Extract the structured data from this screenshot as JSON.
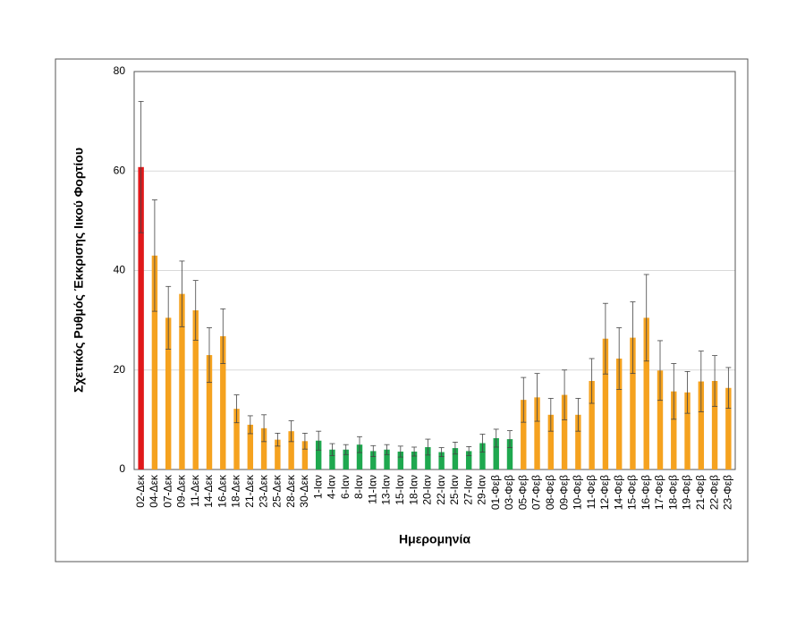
{
  "chart_data": {
    "type": "bar",
    "y_label": "Σχετικός Ρυθμός Έκκρισης Ιικού Φορτίου",
    "x_label": "Ημερομηνία",
    "categories": [
      "02-Δεκ",
      "04-Δεκ",
      "07-Δεκ",
      "09-Δεκ",
      "11-Δεκ",
      "14-Δεκ",
      "16-Δεκ",
      "18-Δεκ",
      "21-Δεκ",
      "23-Δεκ",
      "25-Δεκ",
      "28-Δεκ",
      "30-Δεκ",
      "1-Ιαν",
      "4-Ιαν",
      "6-Ιαν",
      "8-Ιαν",
      "11-Ιαν",
      "13-Ιαν",
      "15-Ιαν",
      "18-Ιαν",
      "20-Ιαν",
      "22-Ιαν",
      "25-Ιαν",
      "27-Ιαν",
      "29-Ιαν",
      "01-Φεβ",
      "03-Φεβ",
      "05-Φεβ",
      "07-Φεβ",
      "08-Φεβ",
      "09-Φεβ",
      "10-Φεβ",
      "11-Φεβ",
      "12-Φεβ",
      "14-Φεβ",
      "15-Φεβ",
      "16-Φεβ",
      "17-Φεβ",
      "18-Φεβ",
      "19-Φεβ",
      "21-Φεβ",
      "22-Φεβ",
      "23-Φεβ"
    ],
    "values": [
      60.8,
      43,
      30.5,
      35.3,
      32,
      23,
      26.8,
      12.2,
      9,
      8.3,
      6,
      7.7,
      5.7,
      5.8,
      4,
      4,
      5,
      3.7,
      4,
      3.6,
      3.6,
      4.5,
      3.5,
      4.3,
      3.7,
      5.3,
      6.3,
      6.1,
      14,
      14.5,
      11,
      15,
      11,
      17.8,
      26.3,
      22.3,
      26.5,
      30.5,
      19.9,
      15.7,
      15.5,
      17.7,
      17.8,
      16.4
    ],
    "errors": [
      13.2,
      11.2,
      6.3,
      6.6,
      6,
      5.5,
      5.5,
      2.8,
      1.8,
      2.7,
      1.3,
      2.1,
      1.6,
      1.9,
      1.2,
      1,
      1.6,
      1.1,
      1,
      1.1,
      0.9,
      1.6,
      0.9,
      1.2,
      0.9,
      1.8,
      1.8,
      1.7,
      4.5,
      4.8,
      3.3,
      5,
      3.3,
      4.5,
      7.1,
      6.2,
      7.2,
      8.7,
      6,
      5.6,
      4.2,
      6.1,
      5.1,
      4.1
    ],
    "colors": [
      "#e0191b",
      "#f5a21f",
      "#f5a21f",
      "#f5a21f",
      "#f5a21f",
      "#f5a21f",
      "#f5a21f",
      "#f5a21f",
      "#f5a21f",
      "#f5a21f",
      "#f5a21f",
      "#f5a21f",
      "#f5a21f",
      "#1fa84f",
      "#1fa84f",
      "#1fa84f",
      "#1fa84f",
      "#1fa84f",
      "#1fa84f",
      "#1fa84f",
      "#1fa84f",
      "#1fa84f",
      "#1fa84f",
      "#1fa84f",
      "#1fa84f",
      "#1fa84f",
      "#1fa84f",
      "#1fa84f",
      "#f5a21f",
      "#f5a21f",
      "#f5a21f",
      "#f5a21f",
      "#f5a21f",
      "#f5a21f",
      "#f5a21f",
      "#f5a21f",
      "#f5a21f",
      "#f5a21f",
      "#f5a21f",
      "#f5a21f",
      "#f5a21f",
      "#f5a21f",
      "#f5a21f",
      "#f5a21f"
    ],
    "ylim": [
      0,
      80
    ],
    "yticks": [
      0,
      20,
      40,
      60,
      80
    ],
    "grid": true
  }
}
